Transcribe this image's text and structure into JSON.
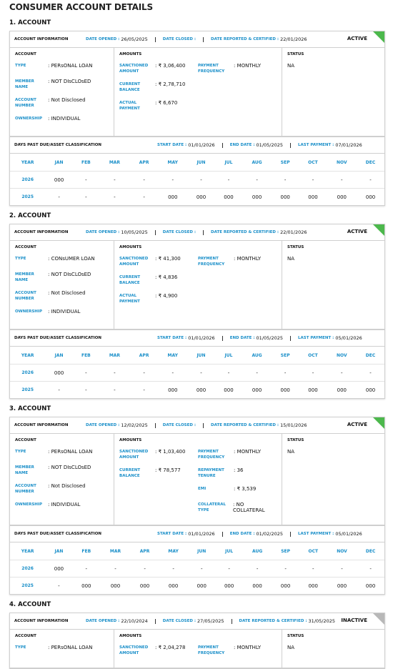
{
  "title": "CONSUMER ACCOUNT DETAILS",
  "accounts": [
    {
      "heading": "1. ACCOUNT",
      "badge_color": "#4cb84c",
      "info": {
        "title": "ACCOUNT INFORMATION",
        "fields": [
          {
            "label": "DATE OPENED :",
            "value": "26/05/2025"
          },
          {
            "label": "DATE CLOSED :"
          },
          {
            "label": "DATE REPORTED & CERTIFIED :",
            "value": "22/01/2026"
          }
        ],
        "status": "ACTIVE"
      },
      "account": {
        "title": "ACCOUNT",
        "rows": [
          {
            "label": "TYPE",
            "value": ": PERsONAL LOAN"
          },
          {
            "label": "MEMBER NAME",
            "value": ": NOT DIsCLOsED"
          },
          {
            "label": "ACCOUNT NUMBER",
            "value": ": Not Disclosed"
          },
          {
            "label": "OWNERSHIP",
            "value": ": INDIVIDUAL"
          }
        ]
      },
      "amounts": {
        "title": "AMOUNTS",
        "left": [
          {
            "label": "SANCTIONED AMOUNT",
            "value": ": ₹ 3,06,400"
          },
          {
            "label": "CURRENT BALANCE",
            "value": ": ₹ 2,78,710"
          },
          {
            "label": "ACTUAL PAYMENT",
            "value": ": ₹ 6,670"
          }
        ],
        "right": [
          {
            "label": "PAYMENT FREQUENCY",
            "value": ": MONTHLY"
          }
        ]
      },
      "status": {
        "title": "STATUS",
        "value": "NA"
      },
      "dpd": {
        "title": "DAYS PAST DUE/ASSET CLASSIFICATION",
        "fields": [
          {
            "label": "START DATE :",
            "value": "01/01/2026"
          },
          {
            "label": "END DATE :",
            "value": "01/05/2025"
          },
          {
            "label": "LAST PAYMENT :",
            "value": "07/01/2026"
          }
        ]
      },
      "table": {
        "header": [
          "YEAR",
          "JAN",
          "FEB",
          "MAR",
          "APR",
          "MAY",
          "JUN",
          "JUL",
          "AUG",
          "SEP",
          "OCT",
          "NOV",
          "DEC"
        ],
        "rows": [
          [
            "2026",
            "000",
            "-",
            "-",
            "-",
            "-",
            "-",
            "-",
            "-",
            "-",
            "-",
            "-",
            "-"
          ],
          [
            "2025",
            "-",
            "-",
            "-",
            "-",
            "000",
            "000",
            "000",
            "000",
            "000",
            "000",
            "000",
            "000"
          ]
        ]
      }
    },
    {
      "heading": "2. ACCOUNT",
      "badge_color": "#4cb84c",
      "info": {
        "title": "ACCOUNT INFORMATION",
        "fields": [
          {
            "label": "DATE OPENED :",
            "value": "10/05/2025"
          },
          {
            "label": "DATE CLOSED :"
          },
          {
            "label": "DATE REPORTED & CERTIFIED :",
            "value": "22/01/2026"
          }
        ],
        "status": "ACTIVE"
      },
      "account": {
        "title": "ACCOUNT",
        "rows": [
          {
            "label": "TYPE",
            "value": ": CONsUMER LOAN"
          },
          {
            "label": "MEMBER NAME",
            "value": ": NOT DIsCLOsED"
          },
          {
            "label": "ACCOUNT NUMBER",
            "value": ": Not Disclosed"
          },
          {
            "label": "OWNERSHIP",
            "value": ": INDIVIDUAL"
          }
        ]
      },
      "amounts": {
        "title": "AMOUNTS",
        "left": [
          {
            "label": "SANCTIONED AMOUNT",
            "value": ": ₹ 41,300"
          },
          {
            "label": "CURRENT BALANCE",
            "value": ": ₹ 4,836"
          },
          {
            "label": "ACTUAL PAYMENT",
            "value": ": ₹ 4,900"
          }
        ],
        "right": [
          {
            "label": "PAYMENT FREQUENCY",
            "value": ": MONTHLY"
          }
        ]
      },
      "status": {
        "title": "STATUS",
        "value": "NA"
      },
      "dpd": {
        "title": "DAYS PAST DUE/ASSET CLASSIFICATION",
        "fields": [
          {
            "label": "START DATE :",
            "value": "01/01/2026"
          },
          {
            "label": "END DATE :",
            "value": "01/05/2025"
          },
          {
            "label": "LAST PAYMENT :",
            "value": "05/01/2026"
          }
        ]
      },
      "table": {
        "header": [
          "YEAR",
          "JAN",
          "FEB",
          "MAR",
          "APR",
          "MAY",
          "JUN",
          "JUL",
          "AUG",
          "SEP",
          "OCT",
          "NOV",
          "DEC"
        ],
        "rows": [
          [
            "2026",
            "000",
            "-",
            "-",
            "-",
            "-",
            "-",
            "-",
            "-",
            "-",
            "-",
            "-",
            "-"
          ],
          [
            "2025",
            "-",
            "-",
            "-",
            "-",
            "000",
            "000",
            "000",
            "000",
            "000",
            "000",
            "000",
            "000"
          ]
        ]
      }
    },
    {
      "heading": "3. ACCOUNT",
      "badge_color": "#4cb84c",
      "info": {
        "title": "ACCOUNT INFORMATION",
        "fields": [
          {
            "label": "DATE OPENED :",
            "value": "12/02/2025"
          },
          {
            "label": "DATE CLOSED :"
          },
          {
            "label": "DATE REPORTED & CERTIFIED :",
            "value": "15/01/2026"
          }
        ],
        "status": "ACTIVE"
      },
      "account": {
        "title": "ACCOUNT",
        "rows": [
          {
            "label": "TYPE",
            "value": ": PERsONAL LOAN"
          },
          {
            "label": "MEMBER NAME",
            "value": ": NOT DIsCLOsED"
          },
          {
            "label": "ACCOUNT NUMBER",
            "value": ": Not Disclosed"
          },
          {
            "label": "OWNERSHIP",
            "value": ": INDIVIDUAL"
          }
        ]
      },
      "amounts": {
        "title": "AMOUNTS",
        "left": [
          {
            "label": "SANCTIONED AMOUNT",
            "value": ": ₹ 1,03,400"
          },
          {
            "label": "CURRENT BALANCE",
            "value": ": ₹ 78,577"
          }
        ],
        "right": [
          {
            "label": "PAYMENT FREQUENCY",
            "value": ": MONTHLY"
          },
          {
            "label": "REPAYMENT TENURE",
            "value": ": 36"
          },
          {
            "label": "EMI",
            "value": ": ₹ 3,539"
          },
          {
            "label": "COLLATERAL TYPE",
            "value": ": NO COLLATERAL"
          }
        ]
      },
      "status": {
        "title": "STATUS",
        "value": "NA"
      },
      "dpd": {
        "title": "DAYS PAST DUE/ASSET CLASSIFICATION",
        "fields": [
          {
            "label": "START DATE :",
            "value": "01/01/2026"
          },
          {
            "label": "END DATE :",
            "value": "01/02/2025"
          },
          {
            "label": "LAST PAYMENT :",
            "value": "05/01/2026"
          }
        ]
      },
      "table": {
        "header": [
          "YEAR",
          "JAN",
          "FEB",
          "MAR",
          "APR",
          "MAY",
          "JUN",
          "JUL",
          "AUG",
          "SEP",
          "OCT",
          "NOV",
          "DEC"
        ],
        "rows": [
          [
            "2026",
            "000",
            "-",
            "-",
            "-",
            "-",
            "-",
            "-",
            "-",
            "-",
            "-",
            "-",
            "-"
          ],
          [
            "2025",
            "-",
            "000",
            "000",
            "000",
            "000",
            "000",
            "000",
            "000",
            "000",
            "000",
            "000",
            "000"
          ]
        ]
      }
    },
    {
      "heading": "4. ACCOUNT",
      "badge_color": "#b8b8b8",
      "info": {
        "title": "ACCOUNT INFORMATION",
        "fields": [
          {
            "label": "DATE OPENED :",
            "value": "22/10/2024"
          },
          {
            "label": "DATE CLOSED :",
            "value": "27/05/2025"
          },
          {
            "label": "DATE REPORTED & CERTIFIED :",
            "value": "31/05/2025"
          }
        ],
        "status": "INACTIVE"
      },
      "account": {
        "title": "ACCOUNT",
        "rows": [
          {
            "label": "TYPE",
            "value": ": PERsONAL LOAN"
          }
        ]
      },
      "amounts": {
        "title": "AMOUNTS",
        "left": [
          {
            "label": "SANCTIONED AMOUNT",
            "value": ": ₹ 2,04,278"
          }
        ],
        "right": [
          {
            "label": "PAYMENT FREQUENCY",
            "value": ": MONTHLY"
          }
        ]
      },
      "status": {
        "title": "STATUS",
        "value": "NA"
      }
    }
  ]
}
